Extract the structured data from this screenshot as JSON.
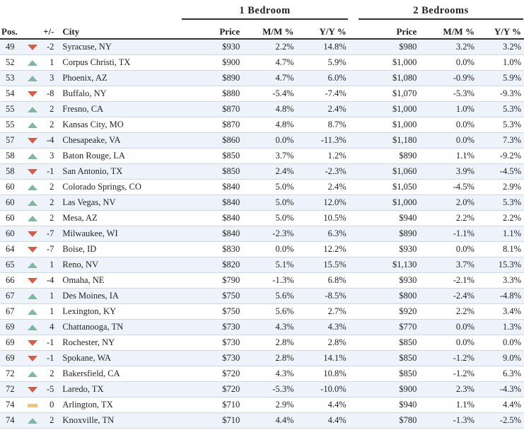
{
  "groups": {
    "one_bed": "1 Bedroom",
    "two_bed": "2 Bedrooms"
  },
  "headers": {
    "pos": "Pos.",
    "change": "+/-",
    "city": "City",
    "price1": "Price",
    "mm1": "M/M %",
    "yy1": "Y/Y %",
    "price2": "Price",
    "mm2": "M/M %",
    "yy2": "Y/Y %"
  },
  "colors": {
    "up": "#7fb7a0",
    "down": "#d65c43",
    "flat": "#efc57c",
    "stripe": "#eef3fb"
  },
  "rows": [
    {
      "pos": "49",
      "trend": "down",
      "change": "-2",
      "city": "Syracuse, NY",
      "price1": "$930",
      "mm1": "2.2%",
      "yy1": "14.8%",
      "price2": "$980",
      "mm2": "3.2%",
      "yy2": "3.2%"
    },
    {
      "pos": "52",
      "trend": "up",
      "change": "1",
      "city": "Corpus Christi, TX",
      "price1": "$900",
      "mm1": "4.7%",
      "yy1": "5.9%",
      "price2": "$1,000",
      "mm2": "0.0%",
      "yy2": "1.0%"
    },
    {
      "pos": "53",
      "trend": "up",
      "change": "3",
      "city": "Phoenix, AZ",
      "price1": "$890",
      "mm1": "4.7%",
      "yy1": "6.0%",
      "price2": "$1,080",
      "mm2": "-0.9%",
      "yy2": "5.9%"
    },
    {
      "pos": "54",
      "trend": "down",
      "change": "-8",
      "city": "Buffalo, NY",
      "price1": "$880",
      "mm1": "-5.4%",
      "yy1": "-7.4%",
      "price2": "$1,070",
      "mm2": "-5.3%",
      "yy2": "-9.3%"
    },
    {
      "pos": "55",
      "trend": "up",
      "change": "2",
      "city": "Fresno, CA",
      "price1": "$870",
      "mm1": "4.8%",
      "yy1": "2.4%",
      "price2": "$1,000",
      "mm2": "1.0%",
      "yy2": "5.3%"
    },
    {
      "pos": "55",
      "trend": "up",
      "change": "2",
      "city": "Kansas City, MO",
      "price1": "$870",
      "mm1": "4.8%",
      "yy1": "8.7%",
      "price2": "$1,000",
      "mm2": "0.0%",
      "yy2": "5.3%"
    },
    {
      "pos": "57",
      "trend": "down",
      "change": "-4",
      "city": "Chesapeake, VA",
      "price1": "$860",
      "mm1": "0.0%",
      "yy1": "-11.3%",
      "price2": "$1,180",
      "mm2": "0.0%",
      "yy2": "7.3%"
    },
    {
      "pos": "58",
      "trend": "up",
      "change": "3",
      "city": "Baton Rouge, LA",
      "price1": "$850",
      "mm1": "3.7%",
      "yy1": "1.2%",
      "price2": "$890",
      "mm2": "1.1%",
      "yy2": "-9.2%"
    },
    {
      "pos": "58",
      "trend": "down",
      "change": "-1",
      "city": "San Antonio, TX",
      "price1": "$850",
      "mm1": "2.4%",
      "yy1": "-2.3%",
      "price2": "$1,060",
      "mm2": "3.9%",
      "yy2": "-4.5%"
    },
    {
      "pos": "60",
      "trend": "up",
      "change": "2",
      "city": "Colorado Springs, CO",
      "price1": "$840",
      "mm1": "5.0%",
      "yy1": "2.4%",
      "price2": "$1,050",
      "mm2": "-4.5%",
      "yy2": "2.9%"
    },
    {
      "pos": "60",
      "trend": "up",
      "change": "2",
      "city": "Las Vegas, NV",
      "price1": "$840",
      "mm1": "5.0%",
      "yy1": "12.0%",
      "price2": "$1,000",
      "mm2": "2.0%",
      "yy2": "5.3%"
    },
    {
      "pos": "60",
      "trend": "up",
      "change": "2",
      "city": "Mesa, AZ",
      "price1": "$840",
      "mm1": "5.0%",
      "yy1": "10.5%",
      "price2": "$940",
      "mm2": "2.2%",
      "yy2": "2.2%"
    },
    {
      "pos": "60",
      "trend": "down",
      "change": "-7",
      "city": "Milwaukee, WI",
      "price1": "$840",
      "mm1": "-2.3%",
      "yy1": "6.3%",
      "price2": "$890",
      "mm2": "-1.1%",
      "yy2": "1.1%"
    },
    {
      "pos": "64",
      "trend": "down",
      "change": "-7",
      "city": "Boise, ID",
      "price1": "$830",
      "mm1": "0.0%",
      "yy1": "12.2%",
      "price2": "$930",
      "mm2": "0.0%",
      "yy2": "8.1%"
    },
    {
      "pos": "65",
      "trend": "up",
      "change": "1",
      "city": "Reno, NV",
      "price1": "$820",
      "mm1": "5.1%",
      "yy1": "15.5%",
      "price2": "$1,130",
      "mm2": "3.7%",
      "yy2": "15.3%"
    },
    {
      "pos": "66",
      "trend": "down",
      "change": "-4",
      "city": "Omaha, NE",
      "price1": "$790",
      "mm1": "-1.3%",
      "yy1": "6.8%",
      "price2": "$930",
      "mm2": "-2.1%",
      "yy2": "3.3%"
    },
    {
      "pos": "67",
      "trend": "up",
      "change": "1",
      "city": "Des Moines, IA",
      "price1": "$750",
      "mm1": "5.6%",
      "yy1": "-8.5%",
      "price2": "$800",
      "mm2": "-2.4%",
      "yy2": "-4.8%"
    },
    {
      "pos": "67",
      "trend": "up",
      "change": "1",
      "city": "Lexington, KY",
      "price1": "$750",
      "mm1": "5.6%",
      "yy1": "2.7%",
      "price2": "$920",
      "mm2": "2.2%",
      "yy2": "3.4%"
    },
    {
      "pos": "69",
      "trend": "up",
      "change": "4",
      "city": "Chattanooga, TN",
      "price1": "$730",
      "mm1": "4.3%",
      "yy1": "4.3%",
      "price2": "$770",
      "mm2": "0.0%",
      "yy2": "1.3%"
    },
    {
      "pos": "69",
      "trend": "down",
      "change": "-1",
      "city": "Rochester, NY",
      "price1": "$730",
      "mm1": "2.8%",
      "yy1": "2.8%",
      "price2": "$850",
      "mm2": "0.0%",
      "yy2": "0.0%"
    },
    {
      "pos": "69",
      "trend": "down",
      "change": "-1",
      "city": "Spokane, WA",
      "price1": "$730",
      "mm1": "2.8%",
      "yy1": "14.1%",
      "price2": "$850",
      "mm2": "-1.2%",
      "yy2": "9.0%"
    },
    {
      "pos": "72",
      "trend": "up",
      "change": "2",
      "city": "Bakersfield, CA",
      "price1": "$720",
      "mm1": "4.3%",
      "yy1": "10.8%",
      "price2": "$850",
      "mm2": "-1.2%",
      "yy2": "6.3%"
    },
    {
      "pos": "72",
      "trend": "down",
      "change": "-5",
      "city": "Laredo, TX",
      "price1": "$720",
      "mm1": "-5.3%",
      "yy1": "-10.0%",
      "price2": "$900",
      "mm2": "2.3%",
      "yy2": "-4.3%"
    },
    {
      "pos": "74",
      "trend": "flat",
      "change": "0",
      "city": "Arlington, TX",
      "price1": "$710",
      "mm1": "2.9%",
      "yy1": "4.4%",
      "price2": "$940",
      "mm2": "1.1%",
      "yy2": "4.4%"
    },
    {
      "pos": "74",
      "trend": "up",
      "change": "2",
      "city": "Knoxville, TN",
      "price1": "$710",
      "mm1": "4.4%",
      "yy1": "4.4%",
      "price2": "$780",
      "mm2": "-1.3%",
      "yy2": "-2.5%"
    }
  ]
}
